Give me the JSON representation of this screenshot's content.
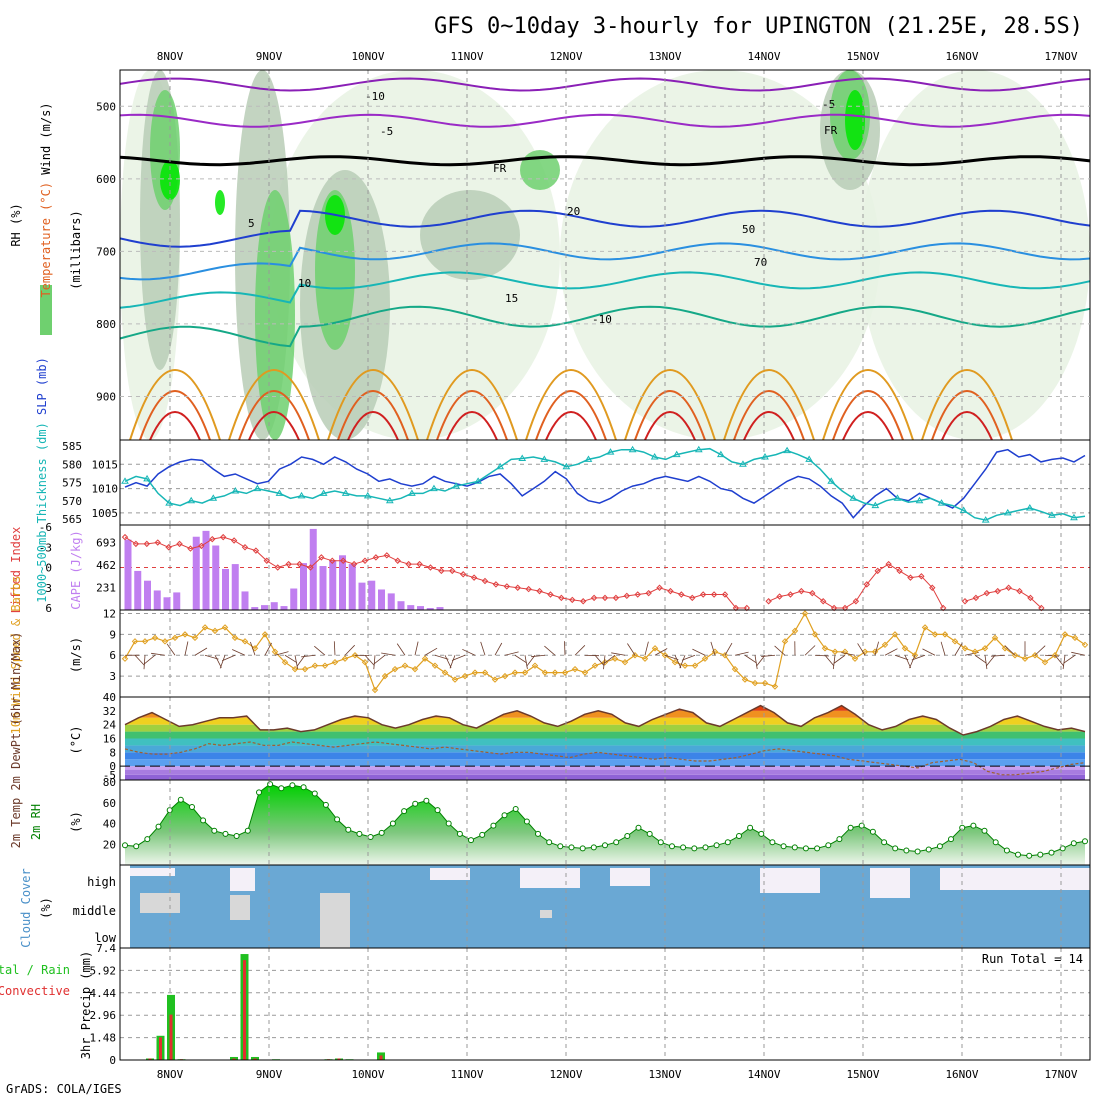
{
  "header": {
    "title": "GFS 0~10day 3-hourly for UPINGTON (21.25E, 28.5S)"
  },
  "footer": {
    "credit": "GrADS: COLA/IGES"
  },
  "chart_data": [
    {
      "panel": "upper-air",
      "type": "contour",
      "x_dates_top": [
        "8NOV",
        "9NOV",
        "10NOV",
        "11NOV",
        "12NOV",
        "13NOV",
        "14NOV",
        "15NOV",
        "16NOV",
        "17NOV"
      ],
      "y_ticks": [
        500,
        600,
        700,
        800,
        900
      ],
      "ylim": [
        960,
        450
      ],
      "ylabel_parts": [
        "RH (%)",
        "Temperature (°C)",
        "Wind (m/s)",
        "(millibars)"
      ],
      "contour_labels": [
        "-10",
        "-5",
        "FR",
        "5",
        "10",
        "15",
        "20",
        "50",
        "70",
        "-10",
        "-5",
        "FR"
      ],
      "colors": {
        "rh_light": "#e8f2e3",
        "rh_mid": "#b8cdb6",
        "rh_high": "#6fd06f",
        "rh_max": "#00e600",
        "neg10": "#8a1fb6",
        "neg5": "#9a2ac6",
        "fr": "#000000",
        "pos5": "#1f3fcf",
        "pos10": "#2a8fe0",
        "pos15": "#17b6b6",
        "pos20": "#15a887",
        "warm1": "#e09a20",
        "warm2": "#e06020",
        "warm3": "#d02020"
      }
    },
    {
      "panel": "slp-thickness",
      "type": "line",
      "ylabel": "1000~500mb Thickness (dm)",
      "ylabel2": "SLP (mb)",
      "y_ticks_left": [
        "565",
        "570",
        "575",
        "580",
        "585"
      ],
      "y_ticks_right": [
        "1005",
        "1010",
        "1015"
      ],
      "ylim": [
        1002.5,
        1020
      ],
      "series": [
        {
          "name": "SLP (mb)",
          "color": "#1f3fcf",
          "values": [
            1010.3,
            1011.2,
            1010.5,
            1013,
            1014.5,
            1015.5,
            1016,
            1015.8,
            1014,
            1012.5,
            1013,
            1012,
            1011,
            1011.5,
            1014,
            1015,
            1016.5,
            1016,
            1015,
            1016.5,
            1015.5,
            1014,
            1013,
            1011.5,
            1012,
            1011,
            1010.5,
            1011,
            1012.5,
            1011.5,
            1011,
            1010.5,
            1011.3,
            1012.5,
            1013,
            1011,
            1008.5,
            1010,
            1011.5,
            1013.5,
            1012,
            1009,
            1007.5,
            1007,
            1008,
            1009.5,
            1010.5,
            1011,
            1012,
            1012.5,
            1012,
            1011.5,
            1012.5,
            1011.5,
            1010,
            1009.5,
            1008,
            1007,
            1008.5,
            1010,
            1011.5,
            1012.5,
            1012,
            1010.5,
            1008.5,
            1007,
            1004,
            1006.5,
            1008.5,
            1010,
            1008,
            1007.5,
            1009,
            1008,
            1007,
            1006,
            1008,
            1011,
            1014,
            1017.5,
            1018,
            1016.5,
            1017,
            1015.5,
            1016,
            1016.3,
            1015.5,
            1016.8
          ]
        },
        {
          "name": "1000~500mb Thickness (dm)",
          "color": "#17b6b6",
          "values": [
            1011.5,
            1012.5,
            1012,
            1009,
            1007,
            1006.5,
            1007.5,
            1007,
            1008,
            1008.5,
            1009.5,
            1009,
            1010,
            1009.5,
            1009,
            1008,
            1008.5,
            1008,
            1009,
            1009.5,
            1009,
            1008.5,
            1008.5,
            1008,
            1007.5,
            1008,
            1009,
            1009,
            1010,
            1009.5,
            1010.5,
            1011,
            1011.5,
            1013,
            1014.5,
            1016,
            1016.2,
            1016.5,
            1016,
            1015.5,
            1014.5,
            1015,
            1016,
            1016.5,
            1017.5,
            1018,
            1018,
            1017.5,
            1016.5,
            1016,
            1017,
            1017.5,
            1018,
            1018.2,
            1017,
            1015.5,
            1015,
            1016,
            1016.5,
            1017,
            1017.8,
            1017,
            1016,
            1014,
            1011.5,
            1009.5,
            1008,
            1007,
            1006.5,
            1007.5,
            1008,
            1007.2,
            1007.5,
            1008,
            1007,
            1006.5,
            1005.5,
            1004,
            1003.5,
            1004.5,
            1005,
            1005.5,
            1006,
            1005.3,
            1004.5,
            1004.8,
            1004,
            1004.3
          ]
        }
      ]
    },
    {
      "panel": "cape-lifted-index",
      "type": "bar",
      "ylabel": "Lifted Index",
      "ylabel2": "CAPE (J/kg)",
      "y_ticks_left": [
        "-6",
        "-3",
        "0",
        "3",
        "6"
      ],
      "y_ticks_right": [
        "231",
        "462",
        "693"
      ],
      "series": [
        {
          "name": "CAPE (J/kg)",
          "color": "#c07ff0",
          "values": [
            720,
            400,
            300,
            200,
            130,
            180,
            0,
            750,
            810,
            660,
            420,
            470,
            190,
            30,
            50,
            80,
            40,
            220,
            480,
            830,
            450,
            510,
            560,
            470,
            280,
            300,
            210,
            170,
            90,
            50,
            40,
            20,
            30,
            0
          ]
        },
        {
          "name": "Lifted Index",
          "color": "#e04040",
          "values": [
            -4.5,
            -3.5,
            -3.5,
            -3.7,
            -3,
            -3.5,
            -2.8,
            -3.2,
            -4.2,
            -4.5,
            -4,
            -3,
            -2.5,
            -1,
            0,
            -0.5,
            -0.5,
            0,
            -1.5,
            -1,
            -1,
            -0.5,
            -1,
            -1.5,
            -1.8,
            -1,
            -0.5,
            -0.5,
            0,
            0.5,
            0.5,
            1,
            1.5,
            2,
            2.5,
            2.8,
            3,
            3.2,
            3.5,
            4,
            4.5,
            4.8,
            5,
            4.5,
            4.5,
            4.5,
            4.2,
            4,
            3.8,
            3,
            3.5,
            4,
            4.5,
            4,
            4,
            4,
            6,
            6,
            6.5,
            5,
            4.3,
            4,
            3.5,
            3.8,
            5,
            6,
            6,
            5,
            2.5,
            0.5,
            -0.5,
            0.5,
            1.5,
            1.3,
            3,
            6,
            7,
            5,
            4.5,
            3.8,
            3.5,
            3,
            3.5,
            4.5,
            6,
            7,
            7.5,
            7.5,
            8
          ]
        }
      ]
    },
    {
      "panel": "10m-wind",
      "type": "line",
      "ylabel": "10m Wind Speed & Barbs",
      "ylabel_unit": "(m/s)",
      "y_ticks": [
        "3",
        "6",
        "9",
        "12"
      ],
      "ylim": [
        0,
        12.5
      ],
      "series": [
        {
          "name": "10m Wind Speed",
          "color": "#e0a020",
          "values": [
            5.5,
            8,
            8,
            8.5,
            8,
            8.5,
            9,
            8.5,
            10,
            9.5,
            10,
            8.5,
            8,
            7,
            9,
            6.5,
            5,
            4,
            4,
            4.5,
            4.5,
            5,
            5.5,
            6,
            5,
            1,
            3,
            4,
            4.5,
            4,
            5.5,
            4.5,
            3.5,
            2.5,
            3,
            3.5,
            3.5,
            2.5,
            3,
            3.5,
            3.5,
            4.5,
            3.5,
            3.5,
            3.5,
            4,
            3.5,
            4.5,
            5,
            5.5,
            5,
            6,
            5.5,
            7,
            6,
            5,
            4.5,
            4.5,
            5.5,
            6.5,
            6,
            4,
            2.5,
            2,
            2,
            1.5,
            8,
            9.5,
            12,
            9,
            7,
            6.5,
            6.5,
            5.5,
            6.5,
            6.5,
            7.5,
            9,
            7,
            6,
            10,
            9,
            9,
            8,
            7,
            6.5,
            7,
            8.5,
            7,
            6,
            5.5,
            6,
            5,
            6,
            9,
            8.5,
            7.5
          ]
        }
      ]
    },
    {
      "panel": "2m-temp",
      "type": "area",
      "ylabel": "2m Temp 2m DewPt (6hr Min/Max)",
      "ylabel_unit": "(°C)",
      "y_ticks": [
        "-5",
        "0",
        "8",
        "16",
        "24",
        "32",
        "40"
      ],
      "ylim": [
        -8,
        40
      ],
      "series": [
        {
          "name": "2m Temp",
          "color": "#6b3a2a",
          "values": [
            24,
            28,
            31,
            27,
            23,
            24,
            26,
            28,
            28,
            29,
            21,
            21,
            22,
            20,
            21,
            24,
            27,
            29,
            28,
            24,
            22,
            24,
            27,
            29,
            28,
            24,
            22,
            26,
            30,
            32,
            29,
            25,
            23,
            26,
            30,
            32,
            30,
            25,
            23,
            27,
            30,
            33,
            31,
            25,
            23,
            27,
            31,
            35,
            31,
            25,
            23,
            28,
            31,
            35,
            30,
            24,
            21,
            23,
            27,
            29,
            27,
            22,
            18,
            20,
            23,
            27,
            29,
            26,
            23,
            21,
            22,
            20
          ]
        },
        {
          "name": "2m DewPt",
          "color": "#a06030",
          "values": [
            10,
            8,
            7,
            7,
            8,
            10,
            13,
            12,
            13,
            14,
            12,
            12,
            14,
            13,
            12,
            11,
            12,
            13,
            14,
            13,
            12,
            11,
            10,
            11,
            10,
            9,
            8,
            7,
            8,
            8,
            7,
            6,
            5,
            7,
            8,
            7,
            6,
            5,
            4,
            5,
            4,
            3,
            3,
            4,
            5,
            7,
            9,
            10,
            9,
            8,
            7,
            6,
            4,
            3,
            2,
            1,
            0,
            -1,
            2,
            3,
            4,
            2,
            -3,
            -5,
            -5,
            -4,
            -3,
            -1,
            1,
            2
          ]
        }
      ]
    },
    {
      "panel": "2m-rh",
      "type": "area",
      "ylabel": "2m RH",
      "ylabel_unit": "(%)",
      "y_ticks": [
        "20",
        "40",
        "60",
        "80"
      ],
      "ylim": [
        0,
        82
      ],
      "series": [
        {
          "name": "2m RH",
          "color": "#008000",
          "values": [
            19,
            18,
            25,
            37,
            53,
            63,
            56,
            43,
            33,
            30,
            28,
            33,
            70,
            78,
            74,
            77,
            75,
            69,
            58,
            44,
            34,
            30,
            27,
            31,
            40,
            52,
            59,
            62,
            53,
            40,
            30,
            24,
            29,
            38,
            48,
            54,
            42,
            30,
            22,
            18,
            17,
            16,
            17,
            19,
            22,
            28,
            36,
            30,
            22,
            18,
            17,
            16,
            17,
            19,
            22,
            28,
            36,
            30,
            22,
            18,
            17,
            16,
            16,
            19,
            25,
            36,
            38,
            32,
            22,
            16,
            14,
            13,
            15,
            18,
            25,
            36,
            38,
            33,
            22,
            14,
            10,
            9,
            10,
            12,
            16,
            21,
            23
          ]
        }
      ]
    },
    {
      "panel": "cloud-cover",
      "type": "heatmap",
      "ylabel": "Cloud Cover",
      "ylabel_unit": "(%)",
      "layers": [
        "high",
        "middle",
        "low"
      ],
      "colors": {
        "cover": "#6aa8d4",
        "partial": "#d8d8d8",
        "clear": "#f4f0f8"
      }
    },
    {
      "panel": "3hr-precip",
      "type": "bar",
      "ylabel_left": "Total / Rain",
      "ylabel_left2": "Convective",
      "ylabel": "3hr Precip (mm)",
      "y_ticks": [
        "0",
        "1.48",
        "2.96",
        "4.44",
        "5.92",
        "7.4"
      ],
      "ylim": [
        0,
        7.4
      ],
      "run_total": "Run Total = 14",
      "series": [
        {
          "name": "Total / Rain",
          "color": "#20c020",
          "values": [
            0.1,
            1.6,
            4.3,
            0.05,
            0,
            0,
            0,
            0,
            0.2,
            7.0,
            0.2,
            0,
            0.05,
            0,
            0,
            0,
            0,
            0.05,
            0.1,
            0.05,
            0,
            0,
            0.5,
            0
          ]
        },
        {
          "name": "Convective",
          "color": "#e03030",
          "values": [
            0.1,
            1.5,
            3.0,
            0.05,
            0,
            0,
            0,
            0,
            0.1,
            6.6,
            0.1,
            0,
            0,
            0,
            0,
            0,
            0,
            0.05,
            0.1,
            0,
            0,
            0,
            0.3,
            0
          ]
        }
      ]
    }
  ],
  "x_axis_bottom": [
    "8NOV",
    "9NOV",
    "10NOV",
    "11NOV",
    "12NOV",
    "13NOV",
    "14NOV",
    "15NOV",
    "16NOV",
    "17NOV"
  ]
}
